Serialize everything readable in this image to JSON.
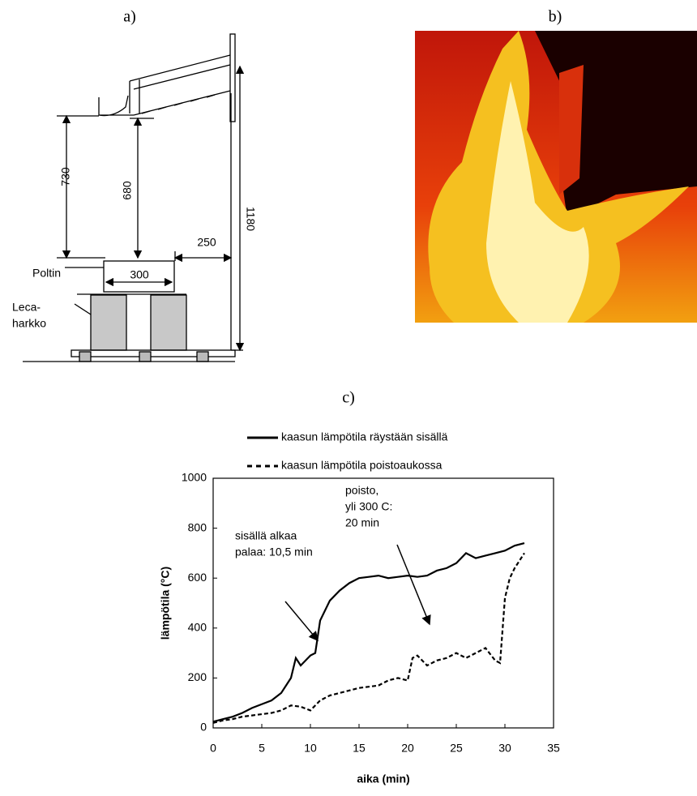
{
  "panels": {
    "a": "a)",
    "b": "b)",
    "c": "c)"
  },
  "diagram": {
    "dim_730": "730",
    "dim_680": "680",
    "dim_250": "250",
    "dim_1180": "1180",
    "dim_300": "300",
    "burner": "Poltin",
    "block_line1": "Leca-",
    "block_line2": "harkko"
  },
  "chart_data": {
    "type": "line",
    "xlabel": "aika (min)",
    "ylabel": "lämpötila (°C)",
    "xlim": [
      0,
      35
    ],
    "ylim": [
      0,
      1000
    ],
    "xticks": [
      0,
      5,
      10,
      15,
      20,
      25,
      30,
      35
    ],
    "yticks": [
      0,
      200,
      400,
      600,
      800,
      1000
    ],
    "legend": "top",
    "series": [
      {
        "name": "kaasun lämpötila räystään sisällä",
        "color": "#000000",
        "style": "solid",
        "x": [
          0,
          1,
          2,
          3,
          4,
          5,
          6,
          7,
          8,
          8.5,
          9,
          10,
          10.5,
          11,
          12,
          13,
          14,
          15,
          16,
          17,
          18,
          19,
          20,
          21,
          22,
          23,
          24,
          25,
          26,
          27,
          28,
          29,
          30,
          31,
          32
        ],
        "values": [
          25,
          35,
          45,
          60,
          80,
          95,
          110,
          140,
          200,
          280,
          250,
          290,
          300,
          430,
          510,
          550,
          580,
          600,
          605,
          610,
          600,
          605,
          610,
          605,
          610,
          630,
          640,
          660,
          700,
          680,
          690,
          700,
          710,
          730,
          740
        ]
      },
      {
        "name": "kaasun lämpötila poistoaukossa",
        "color": "#000000",
        "style": "dashed",
        "x": [
          0,
          1,
          2,
          3,
          4,
          5,
          6,
          7,
          8,
          9,
          10,
          11,
          12,
          13,
          14,
          15,
          16,
          17,
          18,
          19,
          20,
          20.5,
          21,
          22,
          23,
          24,
          25,
          26,
          27,
          28,
          29,
          29.5,
          30,
          30.5,
          31,
          32
        ],
        "values": [
          20,
          30,
          35,
          45,
          50,
          55,
          60,
          70,
          90,
          85,
          70,
          110,
          130,
          140,
          150,
          160,
          165,
          170,
          190,
          200,
          190,
          280,
          290,
          250,
          270,
          280,
          300,
          280,
          300,
          320,
          270,
          260,
          520,
          600,
          640,
          700
        ]
      }
    ],
    "annotations": [
      {
        "lines": [
          "sisällä alkaa",
          "palaa: 10,5 min"
        ]
      },
      {
        "lines": [
          "poisto,",
          "yli 300 C:",
          "20 min"
        ]
      }
    ]
  }
}
